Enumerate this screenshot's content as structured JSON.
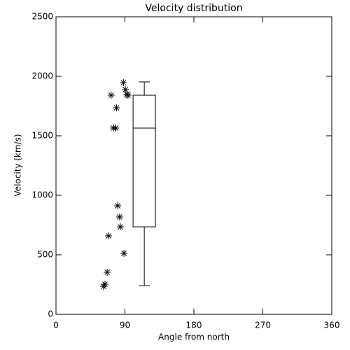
{
  "chart_data": {
    "type": "scatter",
    "title": "Velocity distribution",
    "xlabel": "Angle from north",
    "ylabel": "Velocity (km/s)",
    "xlim": [
      0,
      360
    ],
    "ylim": [
      0,
      2500
    ],
    "xticks": [
      0,
      90,
      180,
      270,
      360
    ],
    "yticks": [
      0,
      500,
      1000,
      1500,
      2000,
      2500
    ],
    "color": "#000000",
    "marker": "asterisk",
    "x": [
      72,
      88,
      90.6,
      92.4,
      94,
      79,
      75,
      78,
      80.5,
      83,
      84,
      68.6,
      88.7,
      66.8,
      64,
      62
    ],
    "values": [
      1841,
      1947,
      1888,
      1847,
      1841,
      1735,
      1565,
      1565,
      912,
      818,
      735,
      659,
      512,
      353,
      253,
      235
    ],
    "box": {
      "x_edges": [
        100.6,
        129.9
      ],
      "whisker_low": 241,
      "q1": 735,
      "median": 1565,
      "q3": 1841,
      "whisker_high": 1953
    }
  }
}
